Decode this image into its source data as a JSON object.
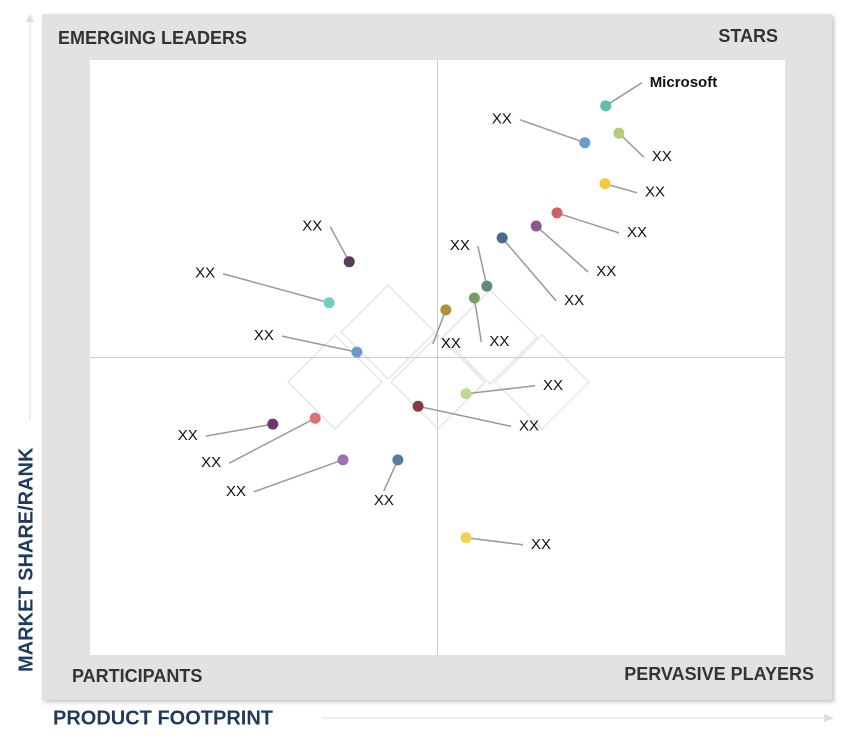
{
  "chart_data": {
    "type": "scatter",
    "xlabel": "PRODUCT FOOTPRINT",
    "ylabel": "MARKET SHARE/RANK",
    "quadrants": {
      "top_left": "EMERGING LEADERS",
      "top_right": "STARS",
      "bottom_left": "PARTICIPANTS",
      "bottom_right": "PERVASIVE PLAYERS"
    },
    "xlim": [
      0,
      100
    ],
    "ylim": [
      0,
      100
    ],
    "series": [
      {
        "name": "Microsoft",
        "color": "#5cbfae",
        "x": [
          74.2
        ],
        "values": [
          92.3
        ]
      },
      {
        "name": "XX",
        "color": "#6a9bd0",
        "x": [
          71.2
        ],
        "values": [
          86.1
        ]
      },
      {
        "name": "XX",
        "color": "#b5cc7a",
        "x": [
          76.1
        ],
        "values": [
          87.7
        ]
      },
      {
        "name": "XX",
        "color": "#f5c842",
        "x": [
          74.1
        ],
        "values": [
          79.2
        ]
      },
      {
        "name": "XX",
        "color": "#d0625e",
        "x": [
          67.2
        ],
        "values": [
          74.3
        ]
      },
      {
        "name": "XX",
        "color": "#8a5a8a",
        "x": [
          64.2
        ],
        "values": [
          72.1
        ]
      },
      {
        "name": "XX",
        "color": "#4a6a8a",
        "x": [
          59.3
        ],
        "values": [
          70.1
        ]
      },
      {
        "name": "XX",
        "color": "#5a8a7a",
        "x": [
          57.1
        ],
        "values": [
          62.0
        ]
      },
      {
        "name": "XX",
        "color": "#7a9a6a",
        "x": [
          55.3
        ],
        "values": [
          60.0
        ]
      },
      {
        "name": "XX",
        "color": "#b0903a",
        "x": [
          51.2
        ],
        "values": [
          58.0
        ]
      },
      {
        "name": "XX",
        "color": "#5a3a5a",
        "x": [
          37.3
        ],
        "values": [
          66.1
        ]
      },
      {
        "name": "XX",
        "color": "#6cd0c0",
        "x": [
          34.4
        ],
        "values": [
          59.2
        ]
      },
      {
        "name": "XX",
        "color": "#6a9bd0",
        "x": [
          38.4
        ],
        "values": [
          50.9
        ]
      },
      {
        "name": "XX",
        "color": "#c0d890",
        "x": [
          54.1
        ],
        "values": [
          43.9
        ]
      },
      {
        "name": "XX",
        "color": "#8a3a3a",
        "x": [
          47.2
        ],
        "values": [
          41.8
        ]
      },
      {
        "name": "XX",
        "color": "#6a3a6a",
        "x": [
          26.3
        ],
        "values": [
          38.8
        ]
      },
      {
        "name": "XX",
        "color": "#e07070",
        "x": [
          32.4
        ],
        "values": [
          39.8
        ]
      },
      {
        "name": "XX",
        "color": "#a070b0",
        "x": [
          36.4
        ],
        "values": [
          32.8
        ]
      },
      {
        "name": "XX",
        "color": "#5a7aa0",
        "x": [
          44.3
        ],
        "values": [
          32.8
        ]
      },
      {
        "name": "XX",
        "color": "#f5d050",
        "x": [
          54.1
        ],
        "values": [
          19.7
        ]
      }
    ]
  }
}
